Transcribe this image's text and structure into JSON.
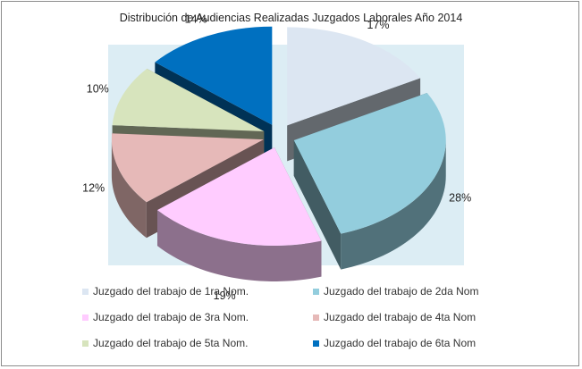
{
  "chart_data": {
    "type": "pie",
    "title": "Distribución de Audiencias Realizadas Juzgados Laborales Año 2014",
    "categories": [
      "Juzgado del trabajo de 1ra Nom.",
      "Juzgado del trabajo de 2da Nom",
      "Juzgado del trabajo de 3ra Nom.",
      "Juzgado del trabajo de 4ta Nom",
      "Juzgado del trabajo de 5ta Nom.",
      "Juzgado del trabajo de 6ta Nom"
    ],
    "values": [
      17,
      28,
      19,
      12,
      10,
      14
    ],
    "labels": [
      "17%",
      "28%",
      "19%",
      "12%",
      "10%",
      "14%"
    ],
    "colors": [
      "#dce6f2",
      "#93cddd",
      "#ffccff",
      "#e6b9b8",
      "#d7e4bd",
      "#0070c0"
    ],
    "exploded": true,
    "three_d": true,
    "legend": "bottom"
  }
}
